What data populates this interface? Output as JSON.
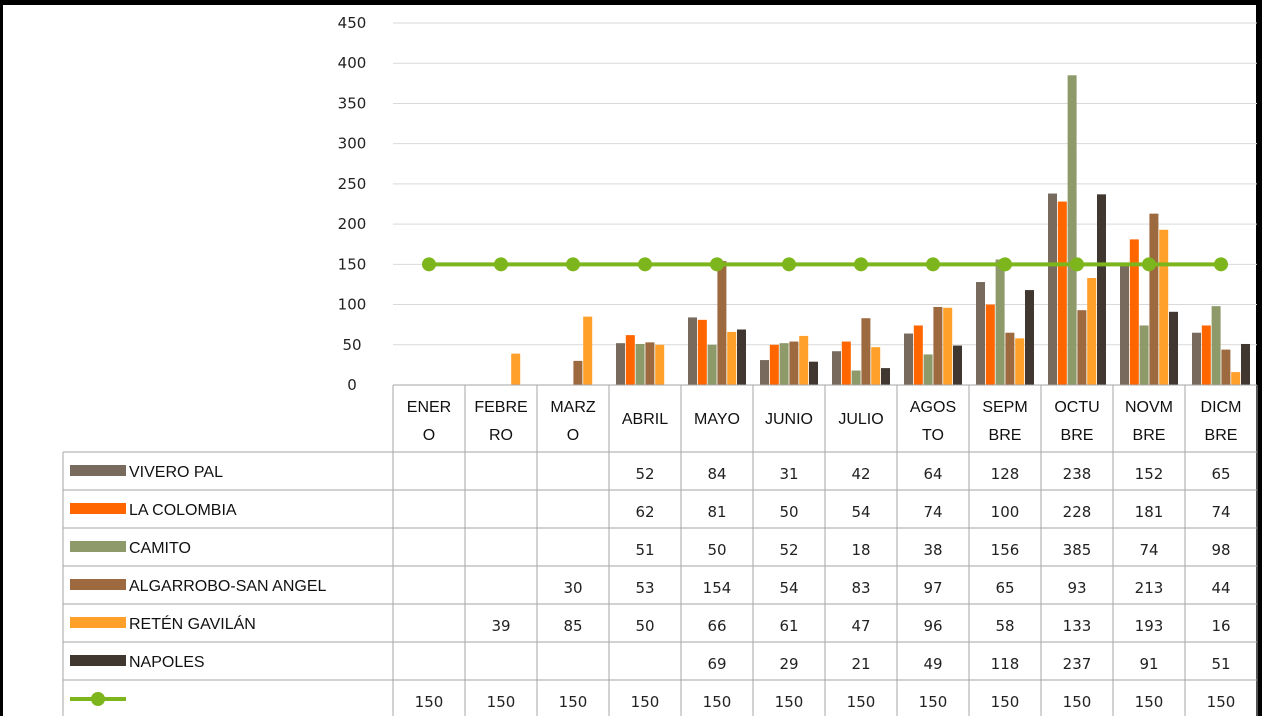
{
  "chart_data": {
    "type": "bar",
    "ylim": [
      0,
      450
    ],
    "yticks": [
      "0",
      "50",
      "100",
      "150",
      "200",
      "250",
      "300",
      "350",
      "400",
      "450"
    ],
    "categories": [
      [
        "ENER",
        "O"
      ],
      [
        "FEBRE",
        "RO"
      ],
      [
        "MARZ",
        "O"
      ],
      [
        "ABRIL"
      ],
      [
        "MAYO"
      ],
      [
        "JUNIO"
      ],
      [
        "JULIO"
      ],
      [
        "AGOS",
        "TO"
      ],
      [
        "SEPM",
        "BRE"
      ],
      [
        "OCTU",
        "BRE"
      ],
      [
        "NOVM",
        "BRE"
      ],
      [
        "DICM",
        "BRE"
      ]
    ],
    "series": [
      {
        "name": "VIVERO PAL",
        "color": "#786b5e",
        "values": [
          null,
          null,
          null,
          52,
          84,
          31,
          42,
          64,
          128,
          238,
          152,
          65
        ]
      },
      {
        "name": "LA COLOMBIA",
        "color": "#ff6600",
        "values": [
          null,
          null,
          null,
          62,
          81,
          50,
          54,
          74,
          100,
          228,
          181,
          74
        ]
      },
      {
        "name": "CAMITO",
        "color": "#8f9a6a",
        "values": [
          null,
          null,
          null,
          51,
          50,
          52,
          18,
          38,
          156,
          385,
          74,
          98
        ]
      },
      {
        "name": "ALGARROBO-SAN ANGEL",
        "color": "#9c6a3e",
        "values": [
          null,
          null,
          30,
          53,
          154,
          54,
          83,
          97,
          65,
          93,
          213,
          44
        ]
      },
      {
        "name": "RETÉN GAVILÁN",
        "color": "#ffa02a",
        "values": [
          null,
          39,
          85,
          50,
          66,
          61,
          47,
          96,
          58,
          133,
          193,
          16
        ]
      },
      {
        "name": "NAPOLES",
        "color": "#3f3730",
        "values": [
          null,
          null,
          null,
          null,
          69,
          29,
          21,
          49,
          118,
          237,
          91,
          51
        ]
      }
    ],
    "line": {
      "name": "",
      "color": "#7db51c",
      "values": [
        150,
        150,
        150,
        150,
        150,
        150,
        150,
        150,
        150,
        150,
        150,
        150
      ]
    }
  }
}
